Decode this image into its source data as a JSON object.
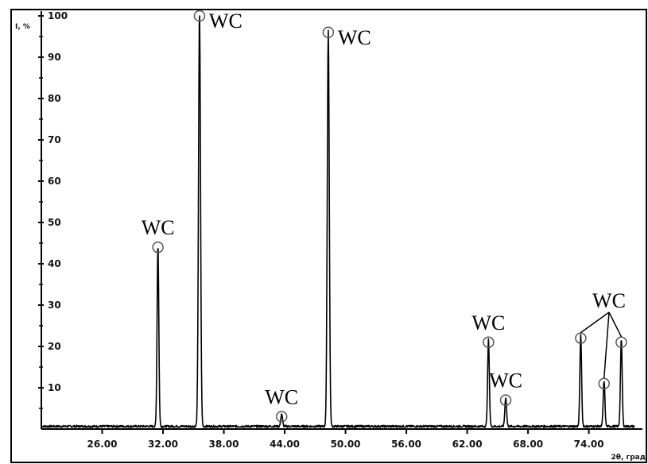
{
  "chart_data": {
    "type": "line",
    "ylabel": "I, %",
    "xlabel": "2θ, град",
    "xlim": [
      20,
      78.5
    ],
    "ylim": [
      0,
      100
    ],
    "x_ticks": [
      "26.00",
      "32.00",
      "38.00",
      "44.00",
      "50.00",
      "56.00",
      "62.00",
      "68.00",
      "74.00"
    ],
    "y_ticks": [
      "10",
      "20",
      "30",
      "40",
      "50",
      "60",
      "70",
      "80",
      "90",
      "100"
    ],
    "grid": false,
    "peaks": [
      {
        "x": 31.5,
        "y": 44,
        "label": "WC"
      },
      {
        "x": 35.6,
        "y": 100,
        "label": "WC"
      },
      {
        "x": 43.7,
        "y": 3,
        "label": "WC"
      },
      {
        "x": 48.3,
        "y": 96,
        "label": "WC"
      },
      {
        "x": 64.1,
        "y": 21,
        "label": "WC"
      },
      {
        "x": 65.8,
        "y": 7,
        "label": "WC"
      },
      {
        "x": 73.2,
        "y": 22,
        "label": ""
      },
      {
        "x": 75.5,
        "y": 11,
        "label": ""
      },
      {
        "x": 77.2,
        "y": 21,
        "label": ""
      }
    ],
    "group_label": "WC"
  }
}
